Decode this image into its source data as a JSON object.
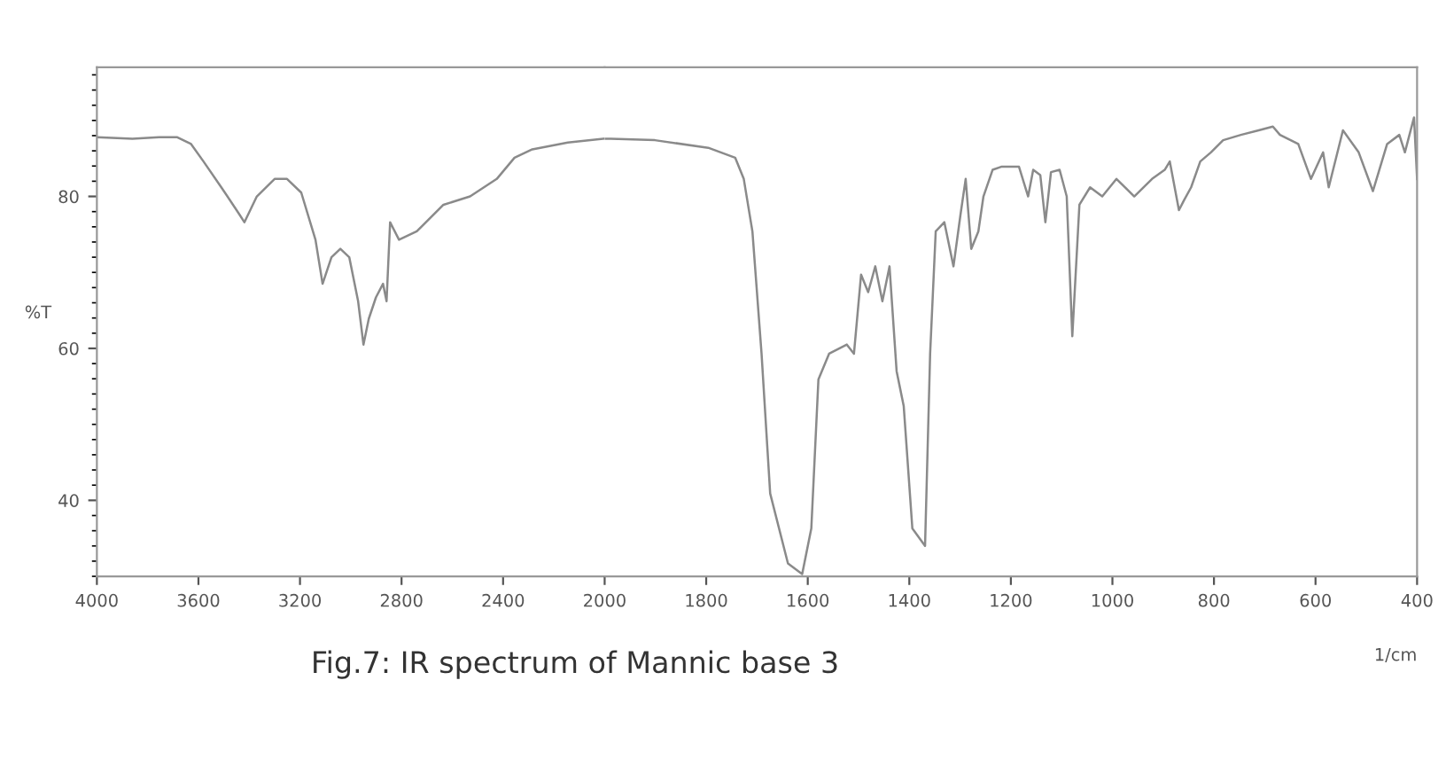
{
  "chart_data": [
    {
      "type": "line",
      "ylabel": "%T",
      "annotations": [
        "Fig.7: IR spectrum of Mannic base 3"
      ],
      "xlim": [
        4000,
        2000
      ],
      "xticks": [
        4000,
        3600,
        3200,
        2800,
        2400
      ],
      "ylim": [
        30,
        97
      ],
      "yticks": [
        40,
        60,
        80
      ],
      "tick_labels": true,
      "grid": false,
      "marker": "none",
      "line_style": "solid",
      "series": [
        {
          "color": "#8a8a8a",
          "x": [
            4000,
            3860,
            3755,
            3685,
            3629,
            3580,
            3510,
            3440,
            3419,
            3370,
            3300,
            3251,
            3195,
            3139,
            3111,
            3076,
            3041,
            3006,
            2971,
            2950,
            2929,
            2901,
            2873,
            2859,
            2845,
            2810,
            2740,
            2635,
            2530,
            2425,
            2355,
            2285,
            2145,
            2000
          ],
          "values": [
            87.8,
            87.6,
            87.8,
            87.8,
            86.9,
            84.6,
            81.2,
            77.7,
            76.6,
            80,
            82.3,
            82.3,
            80.5,
            74.3,
            68.5,
            72,
            73.1,
            72,
            66.2,
            60.5,
            63.9,
            66.7,
            68.5,
            66.2,
            76.6,
            74.3,
            75.4,
            78.9,
            80,
            82.3,
            85.1,
            86.2,
            87.1,
            87.6
          ]
        }
      ]
    },
    {
      "type": "line",
      "xlabel": "1/cm",
      "xlim": [
        2000,
        400
      ],
      "xticks": [
        2000,
        1800,
        1600,
        1400,
        1200,
        1000,
        800,
        600,
        400
      ],
      "ylim": [
        30,
        97
      ],
      "tick_labels": "x",
      "grid": false,
      "marker": "none",
      "line_style": "solid",
      "series": [
        {
          "color": "#8a8a8a",
          "x": [
            2000,
            1988,
            1901,
            1796,
            1743,
            1726,
            1709,
            1691,
            1674,
            1639,
            1611,
            1593,
            1579,
            1558,
            1523,
            1509,
            1495,
            1481,
            1467,
            1453,
            1439,
            1425,
            1411,
            1394,
            1369,
            1359,
            1348,
            1331,
            1313,
            1299,
            1289,
            1278,
            1264,
            1254,
            1236,
            1219,
            1184,
            1166,
            1156,
            1142,
            1132,
            1121,
            1104,
            1090,
            1079,
            1065,
            1044,
            1020,
            992,
            957,
            922,
            897,
            887,
            869,
            859,
            845,
            827,
            806,
            782,
            747,
            712,
            684,
            670,
            634,
            609,
            585,
            574,
            546,
            515,
            487,
            459,
            435,
            424,
            406,
            400
          ],
          "values": [
            87.6,
            87.6,
            87.4,
            86.4,
            85.1,
            82.3,
            75.4,
            59.3,
            40.9,
            31.7,
            30.3,
            36.3,
            55.9,
            59.3,
            60.5,
            59.3,
            69.7,
            67.4,
            70.8,
            66.2,
            70.8,
            57,
            52.4,
            36.3,
            34,
            59.3,
            75.4,
            76.6,
            70.8,
            77.7,
            82.3,
            73.1,
            75.4,
            80,
            83.5,
            83.9,
            83.9,
            80,
            83.5,
            82.8,
            76.6,
            83.2,
            83.5,
            80,
            61.6,
            78.9,
            81.2,
            80,
            82.3,
            80,
            82.3,
            83.5,
            84.6,
            78.2,
            79.5,
            81.2,
            84.6,
            85.8,
            87.4,
            88.1,
            88.7,
            89.2,
            88.1,
            86.9,
            82.3,
            85.8,
            81.2,
            88.7,
            85.8,
            80.7,
            86.9,
            88.1,
            85.8,
            90.4,
            82.3
          ]
        }
      ]
    }
  ]
}
